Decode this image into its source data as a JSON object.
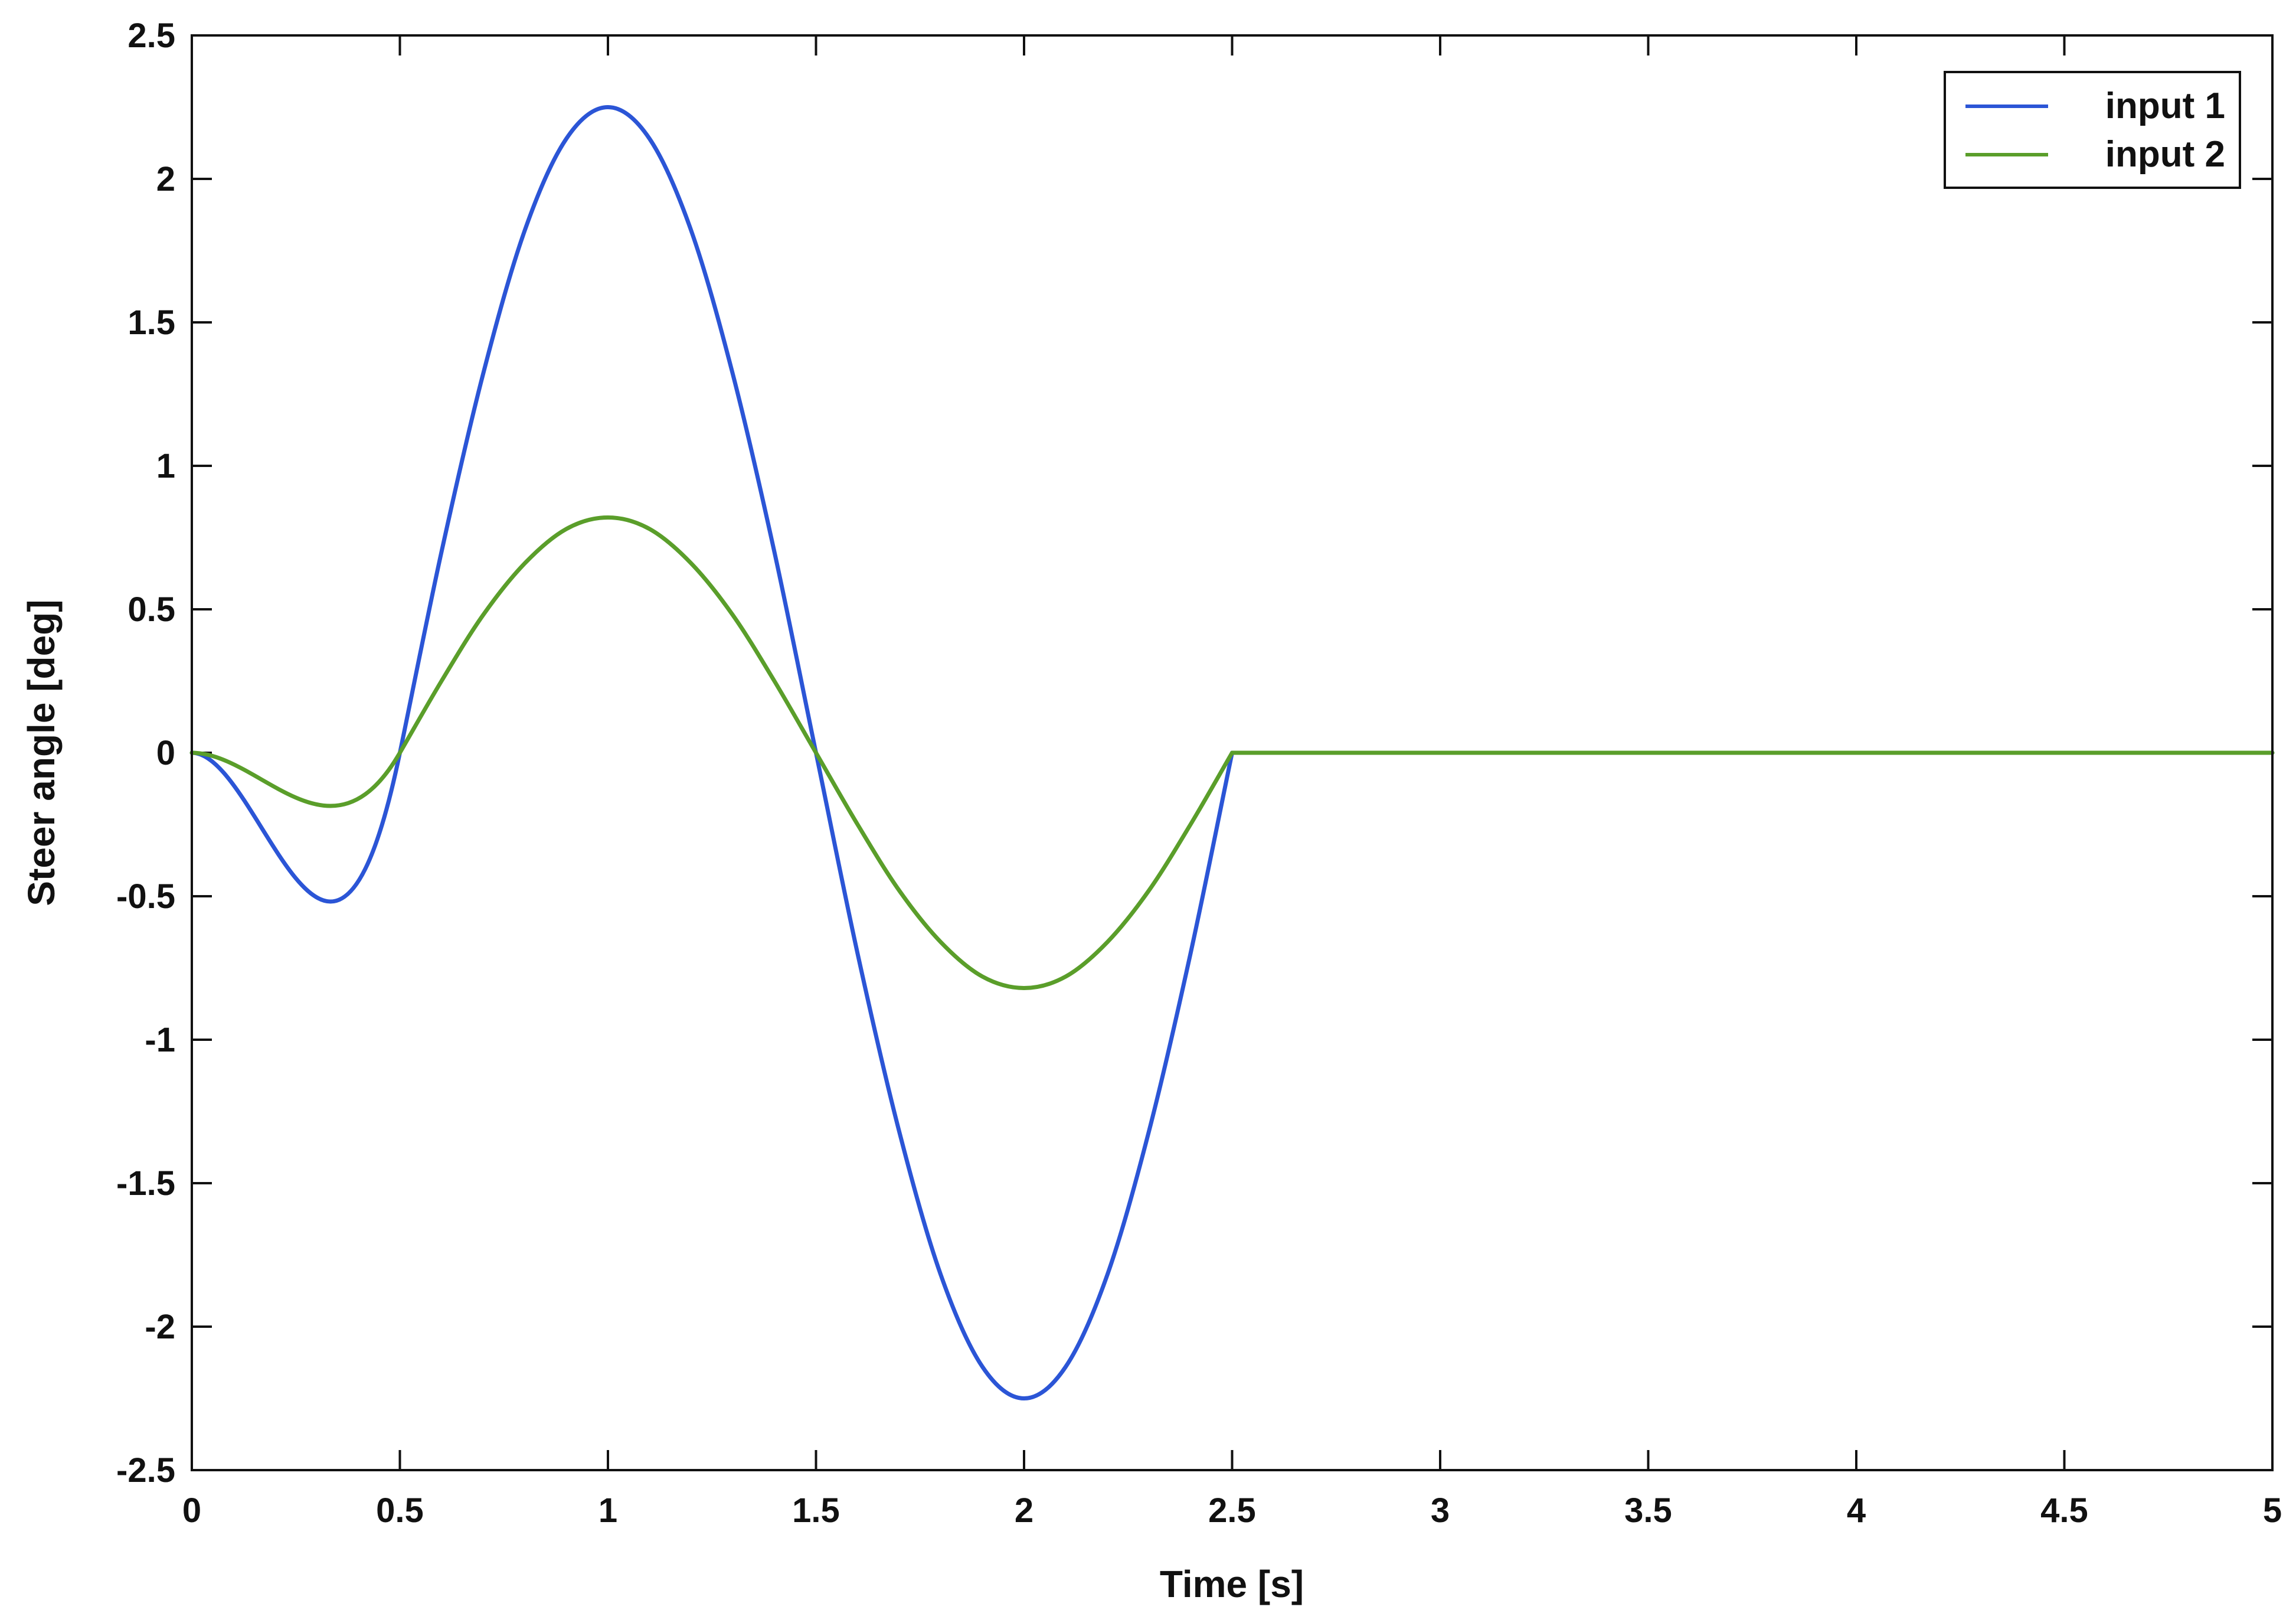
{
  "chart_data": {
    "type": "line",
    "title": "",
    "xlabel": "Time [s]",
    "ylabel": "Steer angle [deg]",
    "xlim": [
      0,
      5
    ],
    "ylim": [
      -2.5,
      2.5
    ],
    "xticks": [
      0,
      0.5,
      1,
      1.5,
      2,
      2.5,
      3,
      3.5,
      4,
      4.5,
      5
    ],
    "yticks": [
      -2.5,
      -2,
      -1.5,
      -1,
      -0.5,
      0,
      0.5,
      1,
      1.5,
      2,
      2.5
    ],
    "xtick_labels": [
      "0",
      "0.5",
      "1",
      "1.5",
      "2",
      "2.5",
      "3",
      "3.5",
      "4",
      "4.5",
      "5"
    ],
    "ytick_labels": [
      "-2.5",
      "-2",
      "-1.5",
      "-1",
      "-0.5",
      "0",
      "0.5",
      "1",
      "1.5",
      "2",
      "2.5"
    ],
    "grid": false,
    "legend_position": "top-right",
    "series": [
      {
        "name": "input 1",
        "color": "#2b55d6",
        "x": [
          0,
          0.5,
          0.6,
          0.7,
          0.8,
          0.9,
          1.0,
          1.1,
          1.2,
          1.3,
          1.4,
          1.5,
          1.6,
          1.7,
          1.8,
          1.9,
          2.0,
          2.1,
          2.2,
          2.3,
          2.4,
          2.5,
          5
        ],
        "y": [
          0,
          0,
          0.7,
          1.32,
          1.82,
          2.14,
          2.25,
          2.14,
          1.82,
          1.32,
          0.7,
          0,
          -0.7,
          -1.32,
          -1.82,
          -2.14,
          -2.25,
          -2.14,
          -1.82,
          -1.32,
          -0.7,
          0,
          0
        ]
      },
      {
        "name": "input 2",
        "color": "#5a9e2a",
        "x": [
          0,
          0.5,
          0.6,
          0.7,
          0.8,
          0.9,
          1.0,
          1.1,
          1.2,
          1.3,
          1.4,
          1.5,
          1.6,
          1.7,
          1.8,
          1.9,
          2.0,
          2.1,
          2.2,
          2.3,
          2.4,
          2.5,
          5
        ],
        "y": [
          0,
          0,
          0.25,
          0.48,
          0.66,
          0.78,
          0.82,
          0.78,
          0.66,
          0.48,
          0.25,
          0,
          -0.25,
          -0.48,
          -0.66,
          -0.78,
          -0.82,
          -0.78,
          -0.66,
          -0.48,
          -0.25,
          0,
          0
        ]
      }
    ]
  }
}
